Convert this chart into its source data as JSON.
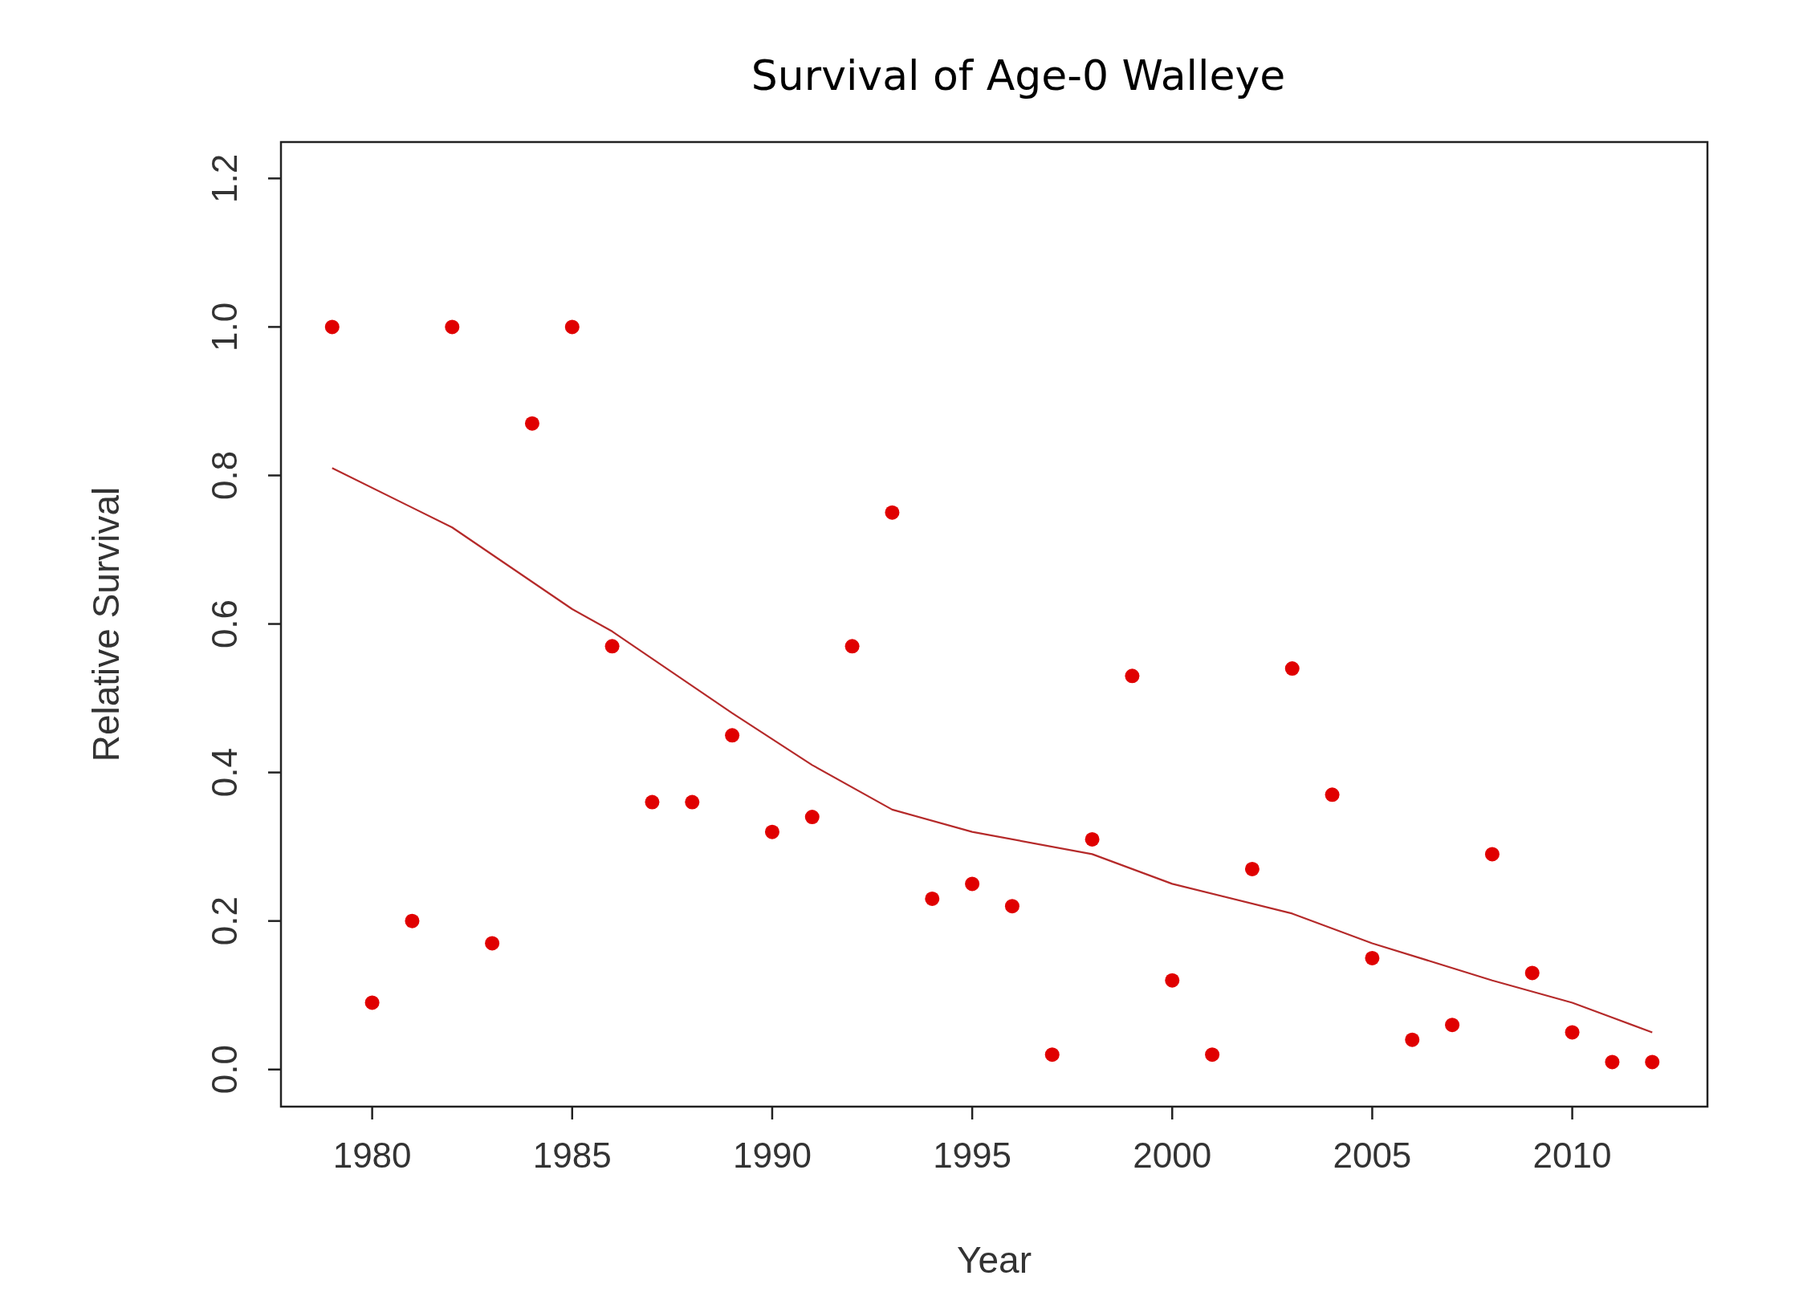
{
  "chart_data": {
    "type": "scatter",
    "title": "Survival of Age-0 Walleye",
    "xlabel": "Year",
    "ylabel": "Relative Survival",
    "xlim": [
      1977.72,
      2013.38
    ],
    "xticks": [
      1980,
      1985,
      1990,
      1995,
      2000,
      2005,
      2010
    ],
    "ylim": [
      -0.05,
      1.249
    ],
    "yticks": [
      {
        "value": 0,
        "label": "0.0"
      },
      {
        "value": 0.2,
        "label": "0.2"
      },
      {
        "value": 0.4,
        "label": "0.4"
      },
      {
        "value": 0.6,
        "label": "0.6"
      },
      {
        "value": 0.8,
        "label": "0.8"
      },
      {
        "value": 1,
        "label": "1.0"
      },
      {
        "value": 1.2,
        "label": "1.2"
      }
    ],
    "grid": false,
    "marker": "circle",
    "series": [
      {
        "color": "#e00000",
        "x": [
          1979,
          1980,
          1981,
          1982,
          1983,
          1984,
          1985,
          1986,
          1987,
          1988,
          1989,
          1990,
          1991,
          1992,
          1993,
          1994,
          1995,
          1996,
          1997,
          1998,
          1999,
          2000,
          2001,
          2002,
          2003,
          2004,
          2005,
          2006,
          2007,
          2008,
          2009,
          2010,
          2011,
          2012
        ],
        "values": [
          1.0,
          0.09,
          0.2,
          1.0,
          0.17,
          0.87,
          1.0,
          0.57,
          0.36,
          0.36,
          0.45,
          0.32,
          0.34,
          0.57,
          0.75,
          0.23,
          0.25,
          0.22,
          0.02,
          0.31,
          0.53,
          0.12,
          0.02,
          0.27,
          0.54,
          0.37,
          0.15,
          0.04,
          0.06,
          0.29,
          0.13,
          0.05,
          0.01,
          0.01
        ]
      },
      {
        "type": "line",
        "marker": "none",
        "color": "#b52a2a",
        "line_style": "solid",
        "x": [
          1979,
          1982,
          1985,
          1986,
          1989,
          1991,
          1993,
          1995,
          1998,
          2000,
          2003,
          2005,
          2008,
          2010,
          2012
        ],
        "values": [
          0.81,
          0.73,
          0.62,
          0.59,
          0.48,
          0.41,
          0.35,
          0.32,
          0.29,
          0.25,
          0.21,
          0.17,
          0.12,
          0.09,
          0.05
        ]
      }
    ]
  }
}
